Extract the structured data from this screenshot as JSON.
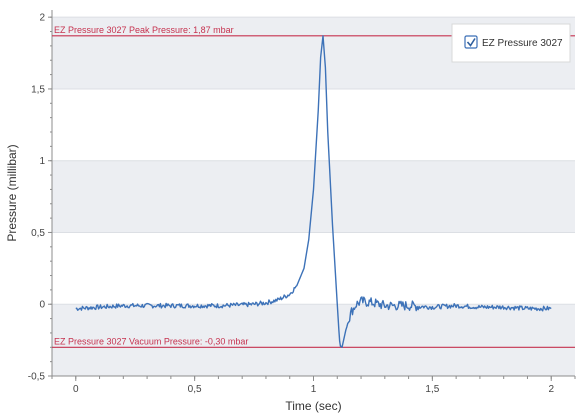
{
  "colors": {
    "band": "#eceef2",
    "line": "#3d72b8",
    "reference": "#c6324f",
    "axis": "#8c8c8c",
    "legend_border": "#d9d9d9"
  },
  "chart_data": {
    "type": "line",
    "xlabel": "Time (sec)",
    "ylabel": "Pressure (millibar)",
    "xlim": [
      -0.1,
      2.1
    ],
    "ylim": [
      -0.5,
      2.05
    ],
    "x_ticks": [
      0,
      0.5,
      1,
      1.5,
      2
    ],
    "x_tick_labels": [
      "0",
      "0,5",
      "1",
      "1,5",
      "2"
    ],
    "y_ticks": [
      -0.5,
      0,
      0.5,
      1,
      1.5,
      2
    ],
    "y_tick_labels": [
      "-0,5",
      "0",
      "0,5",
      "1",
      "1,5",
      "2"
    ],
    "legend": {
      "position": "top-right",
      "checked": true
    },
    "series": [
      {
        "name": "EZ Pressure 3027",
        "x": [
          0,
          0.1,
          0.2,
          0.3,
          0.4,
          0.5,
          0.6,
          0.7,
          0.75,
          0.8,
          0.85,
          0.9,
          0.93,
          0.96,
          0.98,
          1.0,
          1.02,
          1.03,
          1.04,
          1.05,
          1.06,
          1.08,
          1.1,
          1.11,
          1.12,
          1.14,
          1.16,
          1.18,
          1.2,
          1.25,
          1.3,
          1.4,
          1.5,
          1.6,
          1.7,
          1.8,
          1.9,
          2.0
        ],
        "y": [
          -0.03,
          -0.02,
          -0.01,
          -0.01,
          -0.01,
          -0.01,
          -0.01,
          -0.005,
          0.0,
          0.01,
          0.03,
          0.07,
          0.13,
          0.25,
          0.45,
          0.8,
          1.35,
          1.72,
          1.87,
          1.65,
          1.2,
          0.55,
          0.0,
          -0.27,
          -0.3,
          -0.15,
          -0.05,
          0.0,
          0.02,
          0.01,
          -0.01,
          -0.01,
          -0.02,
          -0.01,
          -0.02,
          -0.02,
          -0.03,
          -0.03
        ]
      }
    ],
    "reference_lines": [
      {
        "label": "EZ Pressure 3027 Peak Pressure: 1,87 mbar",
        "y": 1.87
      },
      {
        "label": "EZ Pressure 3027 Vacuum Pressure: -0,30 mbar",
        "y": -0.3
      }
    ]
  }
}
